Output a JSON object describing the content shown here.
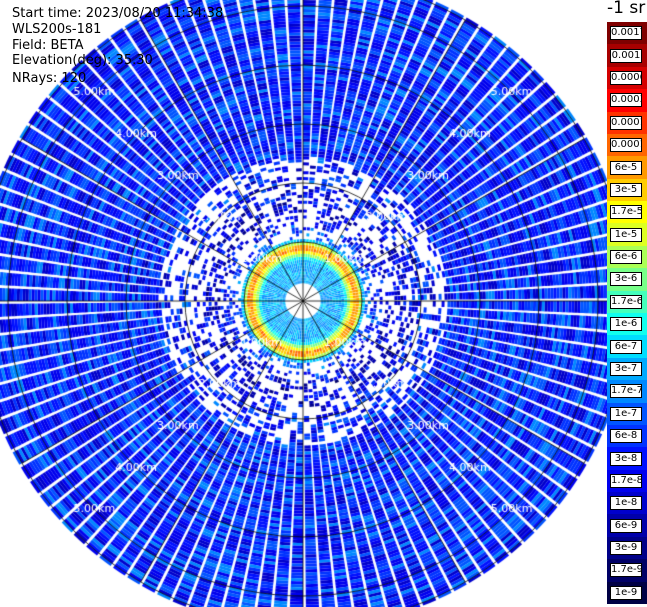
{
  "info": {
    "start_time": "Start time: 2023/08/20 11:34:38",
    "instrument": "WLS200s-181",
    "field": "Field: BETA",
    "elevation": "Elevation(deg): 35.30",
    "nrays": "NRays: 120"
  },
  "colorbar": {
    "unit": "-1 sr",
    "labels": [
      "0.0017",
      "0.001",
      "0.0006",
      "0.0003",
      "0.00017",
      "0.0001",
      "6e-5",
      "3e-5",
      "1.7e-5",
      "1e-5",
      "6e-6",
      "3e-6",
      "1.7e-6",
      "1e-6",
      "6e-7",
      "3e-7",
      "1.7e-7",
      "1e-7",
      "6e-8",
      "3e-8",
      "1.7e-8",
      "1e-8",
      "6e-9",
      "3e-9",
      "1.7e-9",
      "1e-9"
    ],
    "colors": [
      "#7f0000",
      "#a80000",
      "#d40000",
      "#ff0000",
      "#ff3300",
      "#ff6600",
      "#ff9900",
      "#ffcc00",
      "#ffff00",
      "#ddff22",
      "#aaff55",
      "#77ff88",
      "#44ffbb",
      "#11ffee",
      "#00ddff",
      "#00aaff",
      "#0088ff",
      "#0055ff",
      "#0033ff",
      "#0011ff",
      "#0000ee",
      "#0000cc",
      "#0000aa",
      "#000088",
      "#000066",
      "#000044"
    ]
  },
  "chart_data": {
    "type": "heatmap",
    "projection": "polar (PPI scan)",
    "field": "BETA",
    "elevation_deg": 35.3,
    "n_rays": 120,
    "range_rings_km": [
      1,
      2,
      3,
      4,
      5
    ],
    "ring_labels": [
      "1.00km",
      "2.00km",
      "3.00km",
      "4.00km",
      "5.00km"
    ],
    "max_range_km": 5.5,
    "gridlines": "radial every 30 deg, range ring every 1 km",
    "color_scale": "logarithmic, 1e-9 to 0.0017 sr-1",
    "legend_position": "right",
    "profile": [
      {
        "range_km": 0.3,
        "beta": 3e-07
      },
      {
        "range_km": 0.7,
        "beta": 3e-07
      },
      {
        "range_km": 0.8,
        "beta": 1e-05
      },
      {
        "range_km": 0.9,
        "beta": 0.0001
      },
      {
        "range_km": 0.97,
        "beta": 1e-05
      },
      {
        "range_km": 1.05,
        "beta": 1e-07
      },
      {
        "range_km": 1.5,
        "beta": 1e-08
      },
      {
        "range_km": 2.0,
        "beta": 3e-08
      },
      {
        "range_km": 3.0,
        "beta": 4e-08
      },
      {
        "range_km": 4.0,
        "beta": 4e-08
      },
      {
        "range_km": 5.0,
        "beta": 4e-08
      },
      {
        "range_km": 5.5,
        "beta": 4e-08
      }
    ]
  }
}
